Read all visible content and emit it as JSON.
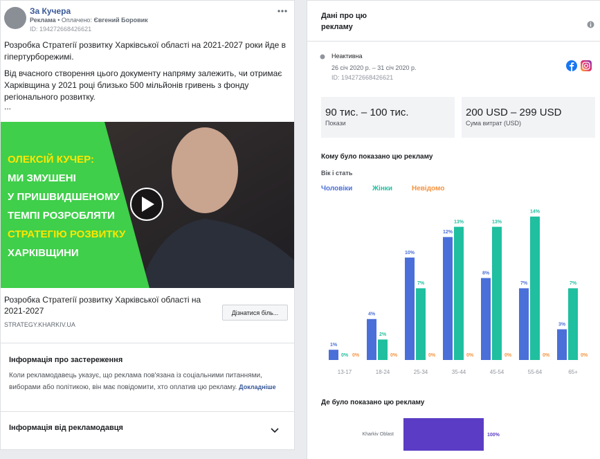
{
  "ad": {
    "page_name": "За Кучера",
    "byline": [
      "Реклама",
      "• Оплачено:",
      "Євгений Боровик"
    ],
    "id": "ID: 194272668426621",
    "text": [
      "Розробка Стратегії розвитку Харківської області на 2021-2027 роки йде в гіпертурборежимі.",
      "Від вчасного створення цього документу напряму залежить, чи отримає Харківщина у 2021 році близько 500 мільйонів гривень з фонду регіонального розвитку.",
      "..."
    ],
    "image_text": [
      "ОЛЕКСІЙ КУЧЕР:",
      "МИ ЗМУШЕНІ",
      "У ПРИШВИДШЕНОМУ",
      "ТЕМПІ РОЗРОБЛЯТИ",
      "СТРАТЕГІЮ РОЗВИТКУ",
      "ХАРКІВЩИНИ"
    ],
    "link_title": "Розробка Стратегії розвитку Харківської області на 2021-2027",
    "link_domain": "STRATEGY.KHARKIV.UA",
    "cta": "Дізнатися біль..."
  },
  "disclaimer": {
    "title": "Інформація про застереження",
    "text": "Коли рекламодавець указує, що реклама пов'язана із соціальними питаннями, виборами або політикою, він має повідомити, хто оплатив цю рекламу.",
    "link": "Докладніше"
  },
  "advertiser_info": {
    "title": "Інформація від рекламодавця"
  },
  "details": {
    "title": "Дані про цю рекламу",
    "status": "Неактивна",
    "dates": "26 січ 2020 р. – 31 січ 2020 р.",
    "id": "ID: 194272668426621",
    "stats": [
      {
        "value": "90 тис. – 100 тис.",
        "label": "Покази"
      },
      {
        "value": "200 USD – 299 USD",
        "label": "Сума витрат (USD)"
      }
    ],
    "audience_title": "Кому було показано цю рекламу",
    "region_title": "Де було показано цю рекламу"
  },
  "chart_data": [
    {
      "type": "bar",
      "title": "Вік і стать",
      "categories": [
        "13-17",
        "18-24",
        "25-34",
        "35-44",
        "45-54",
        "55-64",
        "65+"
      ],
      "series": [
        {
          "name": "Чоловіки",
          "color": "#4a6fd8",
          "values": [
            1,
            4,
            10,
            12,
            8,
            7,
            3
          ],
          "value_labels": [
            "1%",
            "4%",
            "10%",
            "12%",
            "8%",
            "7%",
            "3%"
          ]
        },
        {
          "name": "Жінки",
          "color": "#1fbf9f",
          "values": [
            0,
            2,
            7,
            13,
            13,
            14,
            7
          ],
          "value_labels": [
            "0%",
            "2%",
            "7%",
            "13%",
            "13%",
            "14%",
            "7%"
          ]
        },
        {
          "name": "Невідомо",
          "color": "#f5923e",
          "values": [
            0,
            0,
            0,
            0,
            0,
            0,
            0
          ],
          "value_labels": [
            "0%",
            "0%",
            "0%",
            "0%",
            "0%",
            "0%",
            "0%"
          ]
        }
      ]
    },
    {
      "type": "hbar",
      "categories": [
        "Kharkiv Oblast"
      ],
      "values": [
        100
      ],
      "value_labels": [
        "100%"
      ],
      "color": "#5b3cc4"
    }
  ]
}
